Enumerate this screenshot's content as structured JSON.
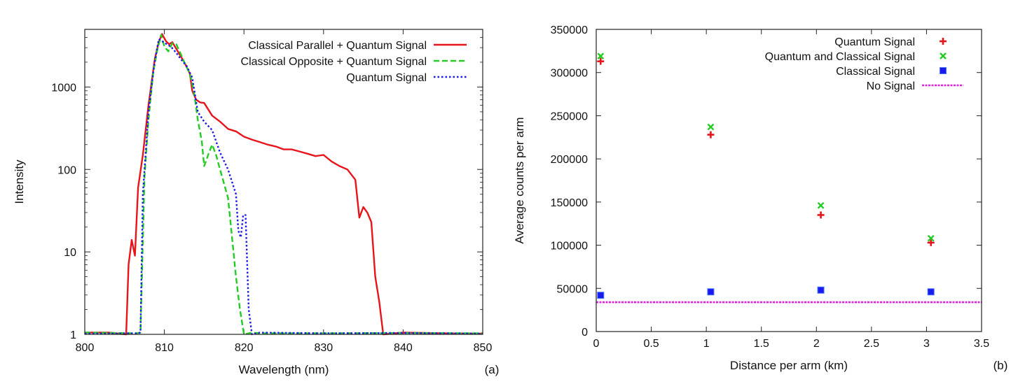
{
  "chart_data": [
    {
      "type": "line",
      "panel_label": "(a)",
      "xlabel": "Wavelength (nm)",
      "ylabel": "Intensity",
      "xlim": [
        800,
        850
      ],
      "ylim": [
        1,
        5000
      ],
      "yscale": "log",
      "xticks": [
        800,
        810,
        820,
        830,
        840,
        850
      ],
      "yticks": [
        1,
        10,
        100,
        1000
      ],
      "xtick_labels": [
        "800",
        "810",
        "820",
        "830",
        "840",
        "850"
      ],
      "ytick_labels": [
        "1",
        "10",
        "100",
        "1000"
      ],
      "legend_position": "top-right",
      "series": [
        {
          "name": "Classical Parallel + Quantum Signal",
          "color": "#e8141b",
          "style": "solid",
          "points": [
            [
              800,
              1.05
            ],
            [
              803,
              1.05
            ],
            [
              805.2,
              1
            ],
            [
              805.5,
              7
            ],
            [
              805.9,
              14
            ],
            [
              806.3,
              9
            ],
            [
              806.7,
              60
            ],
            [
              807.3,
              150
            ],
            [
              808,
              600
            ],
            [
              808.8,
              2200
            ],
            [
              809.3,
              3500
            ],
            [
              809.7,
              4400
            ],
            [
              810.2,
              3600
            ],
            [
              810.6,
              3300
            ],
            [
              811,
              3500
            ],
            [
              811.8,
              2600
            ],
            [
              812.5,
              2000
            ],
            [
              813.2,
              1450
            ],
            [
              813.5,
              900
            ],
            [
              814,
              700
            ],
            [
              814.5,
              650
            ],
            [
              815,
              640
            ],
            [
              816,
              450
            ],
            [
              817,
              380
            ],
            [
              818,
              310
            ],
            [
              819,
              290
            ],
            [
              820,
              250
            ],
            [
              821,
              230
            ],
            [
              822,
              215
            ],
            [
              823,
              200
            ],
            [
              824,
              190
            ],
            [
              825,
              175
            ],
            [
              826,
              175
            ],
            [
              827,
              165
            ],
            [
              828,
              155
            ],
            [
              829,
              145
            ],
            [
              830,
              150
            ],
            [
              831,
              125
            ],
            [
              832,
              110
            ],
            [
              833,
              100
            ],
            [
              834,
              75
            ],
            [
              834.5,
              26
            ],
            [
              835,
              35
            ],
            [
              835.5,
              30
            ],
            [
              836,
              23
            ],
            [
              836.5,
              5
            ],
            [
              837,
              2.5
            ],
            [
              837.5,
              1
            ],
            [
              840,
              1.05
            ],
            [
              845,
              1.03
            ],
            [
              850,
              1.02
            ]
          ]
        },
        {
          "name": "Classical Opposite + Quantum Signal",
          "color": "#22cc22",
          "style": "dashed",
          "points": [
            [
              800,
              1.05
            ],
            [
              806.5,
              1.03
            ],
            [
              807,
              1.05
            ],
            [
              807.5,
              80
            ],
            [
              808,
              400
            ],
            [
              808.6,
              1500
            ],
            [
              809.1,
              2800
            ],
            [
              809.6,
              4300
            ],
            [
              810,
              3100
            ],
            [
              810.5,
              2700
            ],
            [
              811,
              3400
            ],
            [
              811.5,
              3300
            ],
            [
              812,
              2600
            ],
            [
              812.5,
              2000
            ],
            [
              813.2,
              1450
            ],
            [
              813.7,
              900
            ],
            [
              814.2,
              400
            ],
            [
              814.7,
              220
            ],
            [
              815,
              110
            ],
            [
              815.5,
              150
            ],
            [
              816,
              200
            ],
            [
              816.5,
              150
            ],
            [
              817,
              100
            ],
            [
              818,
              45
            ],
            [
              818.5,
              15
            ],
            [
              819,
              5
            ],
            [
              819.5,
              2
            ],
            [
              820,
              1
            ],
            [
              821,
              1.05
            ],
            [
              822,
              1.03
            ],
            [
              830,
              1.03
            ],
            [
              840,
              1.04
            ],
            [
              850,
              1.03
            ]
          ]
        },
        {
          "name": "Quantum Signal",
          "color": "#1a1aee",
          "style": "dotted",
          "points": [
            [
              800,
              1.02
            ],
            [
              806.5,
              1.03
            ],
            [
              807,
              1.05
            ],
            [
              807.3,
              50
            ],
            [
              808,
              500
            ],
            [
              808.7,
              1800
            ],
            [
              809.3,
              3800
            ],
            [
              809.7,
              3600
            ],
            [
              810.3,
              3300
            ],
            [
              810.8,
              3100
            ],
            [
              811.5,
              2600
            ],
            [
              812.2,
              2100
            ],
            [
              812.8,
              1800
            ],
            [
              813.5,
              1300
            ],
            [
              814.2,
              500
            ],
            [
              815,
              380
            ],
            [
              816,
              300
            ],
            [
              817,
              160
            ],
            [
              818,
              100
            ],
            [
              819,
              50
            ],
            [
              819.3,
              18
            ],
            [
              819.6,
              15
            ],
            [
              819.9,
              28
            ],
            [
              820.2,
              28
            ],
            [
              820.6,
              2
            ],
            [
              821,
              1
            ],
            [
              822,
              1.05
            ],
            [
              830,
              1.03
            ],
            [
              840,
              1.04
            ],
            [
              850,
              1.02
            ]
          ]
        }
      ]
    },
    {
      "type": "scatter",
      "panel_label": "(b)",
      "xlabel": "Distance per arm (km)",
      "ylabel": "Average counts per arm",
      "xlim": [
        0,
        3.5
      ],
      "ylim": [
        0,
        350000
      ],
      "xticks": [
        0,
        0.5,
        1,
        1.5,
        2,
        2.5,
        3,
        3.5
      ],
      "yticks": [
        0,
        50000,
        100000,
        150000,
        200000,
        250000,
        300000,
        350000
      ],
      "xtick_labels": [
        "0",
        "0.5",
        "1",
        "1.5",
        "2",
        "2.5",
        "3",
        "3.5"
      ],
      "ytick_labels": [
        "0",
        "50000",
        "100000",
        "150000",
        "200000",
        "250000",
        "300000",
        "350000"
      ],
      "legend_position": "top-right",
      "series": [
        {
          "name": "Quantum Signal",
          "color": "#e8141b",
          "marker": "plus",
          "x": [
            0.04,
            1.04,
            2.04,
            3.04
          ],
          "y": [
            313000,
            228000,
            135000,
            103000
          ]
        },
        {
          "name": "Quantum and Classical Signal",
          "color": "#22cc22",
          "marker": "cross",
          "x": [
            0.04,
            1.04,
            2.04,
            3.04
          ],
          "y": [
            319000,
            237000,
            146000,
            108000
          ]
        },
        {
          "name": "Classical Signal",
          "color": "#1a1aee",
          "marker": "square",
          "x": [
            0.04,
            1.04,
            2.04,
            3.04
          ],
          "y": [
            42000,
            46000,
            48000,
            46000
          ]
        },
        {
          "name": "No Signal",
          "color": "#dd22dd",
          "marker": "line",
          "y_constant": 34000
        }
      ]
    }
  ]
}
